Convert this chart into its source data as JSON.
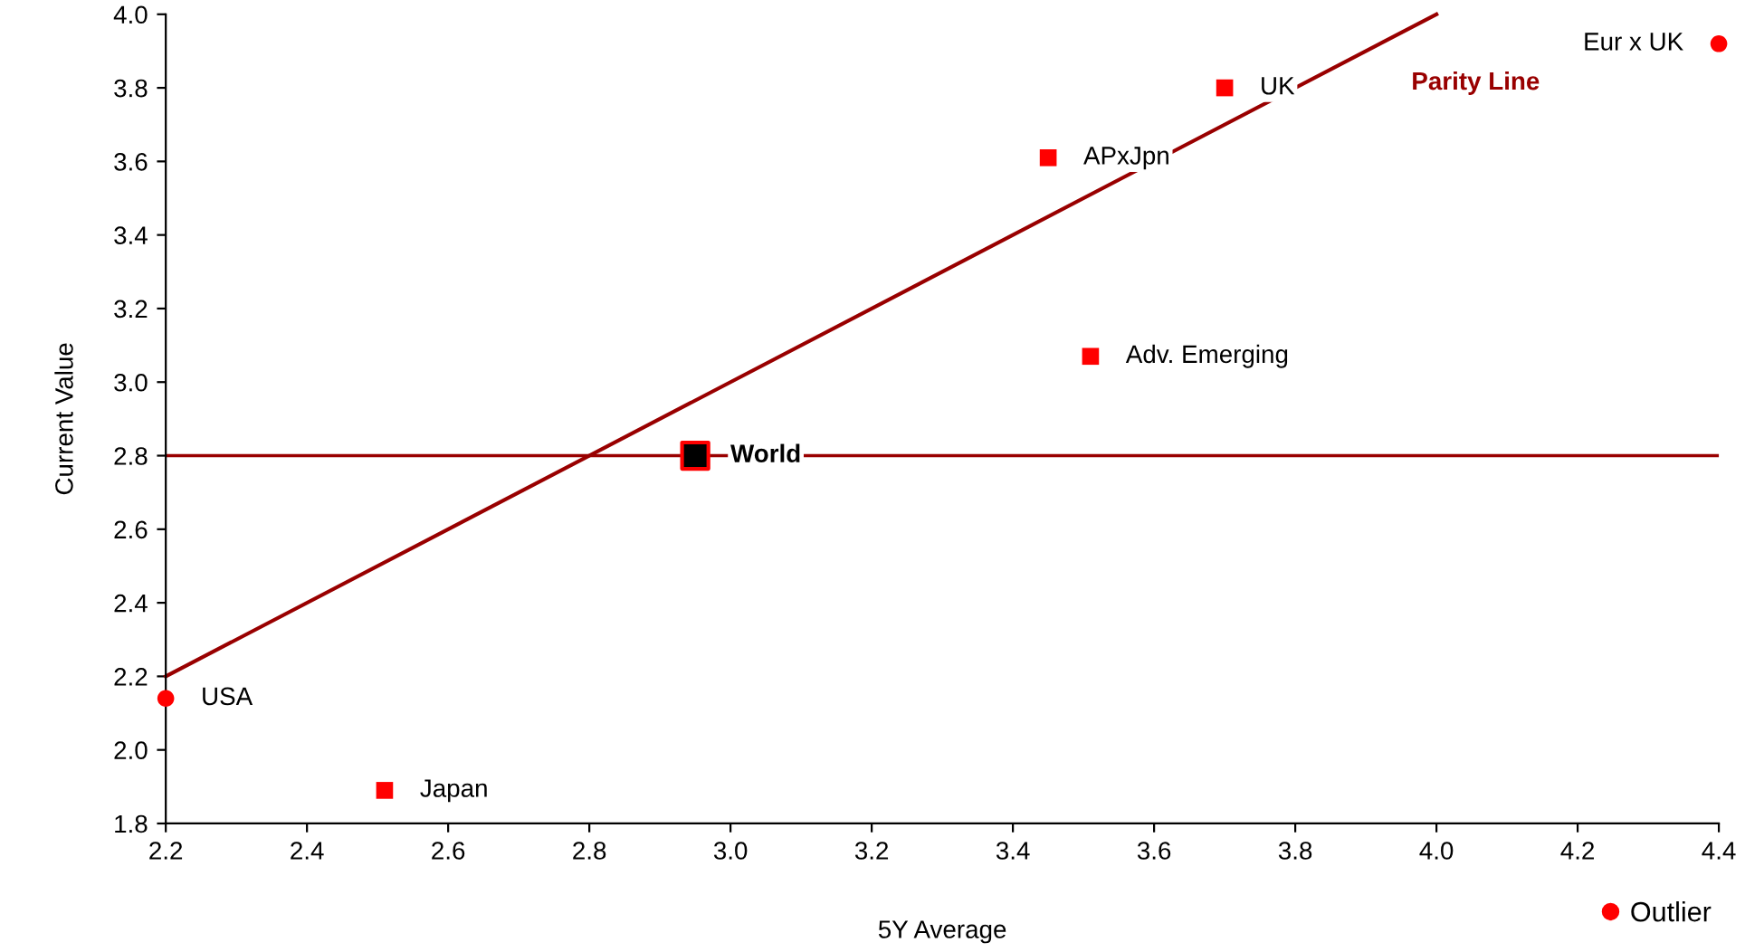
{
  "chart_data": {
    "type": "scatter",
    "xlabel": "5Y Average",
    "ylabel": "Current Value",
    "xlim": [
      2.2,
      4.4
    ],
    "ylim": [
      1.8,
      4.0
    ],
    "xticks": [
      2.2,
      2.4,
      2.6,
      2.8,
      {
        "value": 3,
        "label": "3.0"
      },
      3.2,
      3.4,
      3.6,
      3.8,
      {
        "value": 4,
        "label": "4.0"
      },
      4.2,
      4.4
    ],
    "yticks": [
      1.8,
      {
        "value": 2,
        "label": "2.0"
      },
      2.2,
      2.4,
      2.6,
      2.8,
      {
        "value": 3,
        "label": "3.0"
      },
      3.2,
      3.4,
      3.6,
      3.8,
      {
        "value": 4,
        "label": "4.0"
      }
    ],
    "grid": false,
    "legend": "bottom right",
    "series": [
      {
        "type": "line",
        "name": "Parity Line",
        "color": "#990000",
        "x": [
          2.2,
          4.0
        ],
        "values": [
          2.2,
          4.0
        ],
        "marker": "none",
        "line_style": "solid"
      },
      {
        "color": "#ff0000",
        "marker": "square",
        "x": [
          2.51,
          3.45,
          3.7,
          3.51
        ],
        "values": [
          1.89,
          3.61,
          3.8,
          3.07
        ]
      },
      {
        "name": "Outlier",
        "color": "#ff0000",
        "marker": "circle",
        "x": [
          2.2,
          4.4
        ],
        "values": [
          2.14,
          3.92
        ]
      },
      {
        "color": "#000000",
        "marker": "square",
        "x": [
          2.95
        ],
        "values": [
          2.8
        ]
      }
    ],
    "ref_lines": [
      {
        "axis": "y",
        "value": 2.8,
        "color": "#990000"
      }
    ],
    "annotations": [
      {
        "text": "USA",
        "x": 2.2,
        "y": 2.14
      },
      {
        "text": "Japan",
        "x": 2.51,
        "y": 1.89
      },
      {
        "text": "APxJpn",
        "x": 3.45,
        "y": 3.61
      },
      {
        "text": "UK",
        "x": 3.7,
        "y": 3.8
      },
      {
        "text": "Adv. Emerging",
        "x": 3.51,
        "y": 3.07
      },
      {
        "text": "Eur x UK",
        "x": 4.4,
        "y": 3.92
      },
      {
        "text": "World",
        "x": 2.95,
        "y": 2.8
      }
    ]
  }
}
